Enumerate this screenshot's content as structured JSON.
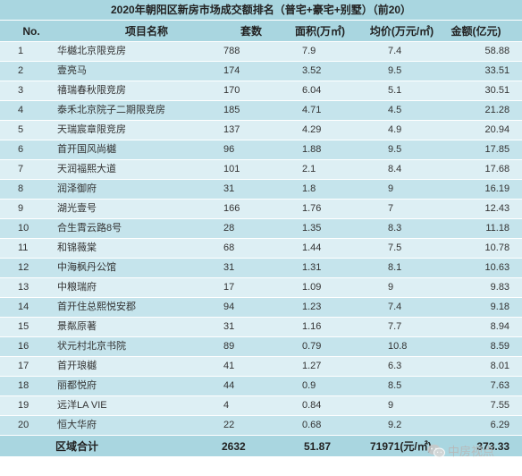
{
  "table": {
    "title": "2020年朝阳区新房市场成交额排名（普宅+豪宅+别墅）（前20）",
    "headers": [
      "No.",
      "项目名称",
      "套数",
      "面积(万㎡)",
      "均价(万元/㎡)",
      "金额(亿元)"
    ],
    "rows": [
      [
        "1",
        "华樾北京限竞房",
        "788",
        "7.9",
        "7.4",
        "58.88"
      ],
      [
        "2",
        "壹亮马",
        "174",
        "3.52",
        "9.5",
        "33.51"
      ],
      [
        "3",
        "禧瑞春秋限竞房",
        "170",
        "6.04",
        "5.1",
        "30.51"
      ],
      [
        "4",
        "泰禾北京院子二期限竞房",
        "185",
        "4.71",
        "4.5",
        "21.28"
      ],
      [
        "5",
        "天瑞宸章限竞房",
        "137",
        "4.29",
        "4.9",
        "20.94"
      ],
      [
        "6",
        "首开国风尚樾",
        "96",
        "1.88",
        "9.5",
        "17.85"
      ],
      [
        "7",
        "天润福熙大道",
        "101",
        "2.1",
        "8.4",
        "17.68"
      ],
      [
        "8",
        "润泽御府",
        "31",
        "1.8",
        "9",
        "16.19"
      ],
      [
        "9",
        "湖光壹号",
        "166",
        "1.76",
        "7",
        "12.43"
      ],
      [
        "10",
        "合生霄云路8号",
        "28",
        "1.35",
        "8.3",
        "11.18"
      ],
      [
        "11",
        "和锦薇棠",
        "68",
        "1.44",
        "7.5",
        "10.78"
      ],
      [
        "12",
        "中海枫丹公馆",
        "31",
        "1.31",
        "8.1",
        "10.63"
      ],
      [
        "13",
        "中粮瑞府",
        "17",
        "1.09",
        "9",
        "9.83"
      ],
      [
        "14",
        "首开住总熙悦安郡",
        "94",
        "1.23",
        "7.4",
        "9.18"
      ],
      [
        "15",
        "景粼原著",
        "31",
        "1.16",
        "7.7",
        "8.94"
      ],
      [
        "16",
        "状元村北京书院",
        "89",
        "0.79",
        "10.8",
        "8.59"
      ],
      [
        "17",
        "首开琅樾",
        "41",
        "1.27",
        "6.3",
        "8.01"
      ],
      [
        "18",
        "丽都悦府",
        "44",
        "0.9",
        "8.5",
        "7.63"
      ],
      [
        "19",
        "远洋LA VIE",
        "4",
        "0.84",
        "9",
        "7.55"
      ],
      [
        "20",
        "恒大华府",
        "22",
        "0.68",
        "9.2",
        "6.29"
      ]
    ],
    "total": [
      "",
      "区域合计",
      "2632",
      "51.87",
      "71971(元/㎡)",
      "373.33"
    ]
  },
  "watermark": {
    "text": "中房视点",
    "icon": "wechat-logo-icon"
  }
}
